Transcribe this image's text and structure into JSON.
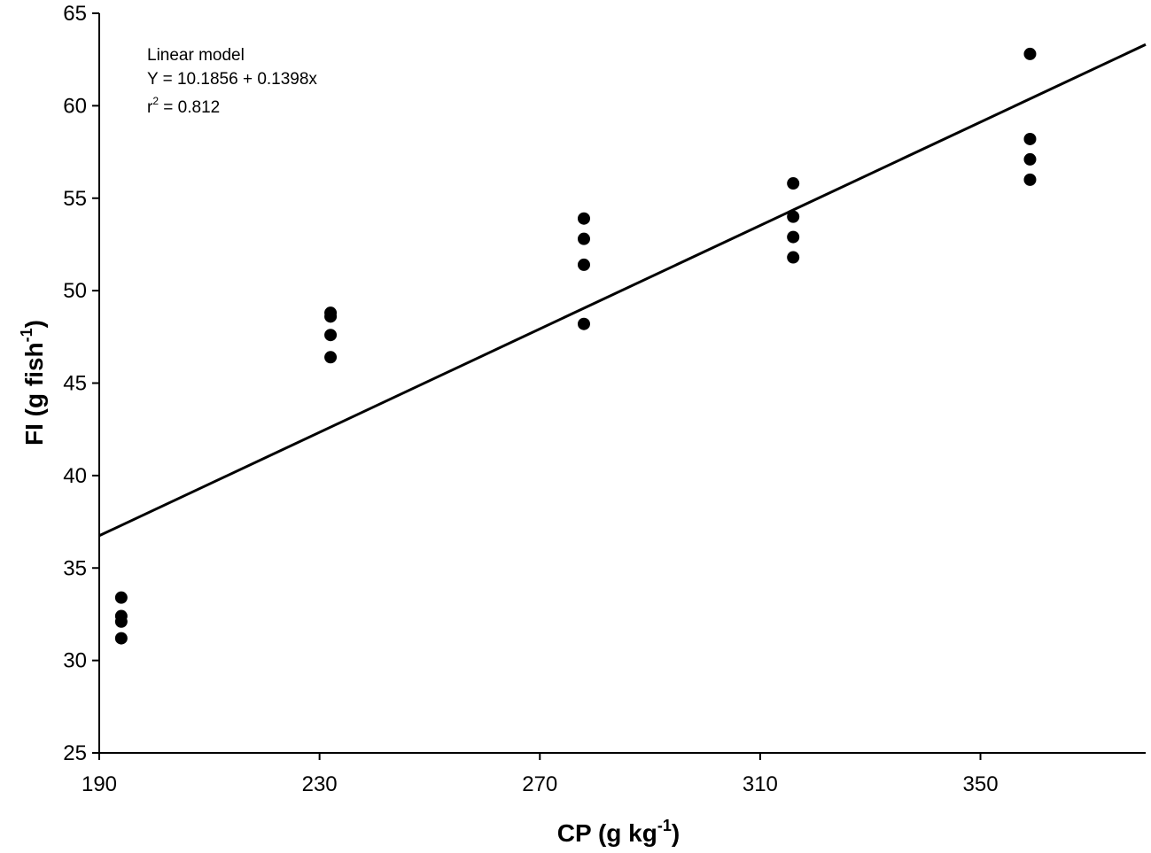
{
  "chart_data": {
    "type": "scatter",
    "xlabel": {
      "base": "CP (g kg",
      "sup": "-1",
      "tail": ")"
    },
    "ylabel": {
      "base": "FI (g fish",
      "sup": "-1",
      "tail": ")"
    },
    "xlim": [
      190,
      380
    ],
    "ylim": [
      25,
      65
    ],
    "xticks": [
      190,
      230,
      270,
      310,
      350
    ],
    "yticks": [
      25,
      30,
      35,
      40,
      45,
      50,
      55,
      60,
      65
    ],
    "grid": false,
    "annotation": {
      "line1": "Linear model",
      "line2": "Y = 10.1856 + 0.1398x",
      "line3_base": "r",
      "line3_sup": "2",
      "line3_tail": " = 0.812"
    },
    "fit": {
      "intercept": 10.1856,
      "slope": 0.1398,
      "x_range": [
        190,
        380
      ]
    },
    "points": [
      {
        "x": 194,
        "y": 33.4
      },
      {
        "x": 194,
        "y": 32.4
      },
      {
        "x": 194,
        "y": 32.1
      },
      {
        "x": 194,
        "y": 31.2
      },
      {
        "x": 232,
        "y": 48.8
      },
      {
        "x": 232,
        "y": 48.6
      },
      {
        "x": 232,
        "y": 47.6
      },
      {
        "x": 232,
        "y": 46.4
      },
      {
        "x": 278,
        "y": 53.9
      },
      {
        "x": 278,
        "y": 52.8
      },
      {
        "x": 278,
        "y": 51.4
      },
      {
        "x": 278,
        "y": 48.2
      },
      {
        "x": 316,
        "y": 55.8
      },
      {
        "x": 316,
        "y": 54.0
      },
      {
        "x": 316,
        "y": 52.9
      },
      {
        "x": 316,
        "y": 51.8
      },
      {
        "x": 359,
        "y": 62.8
      },
      {
        "x": 359,
        "y": 58.2
      },
      {
        "x": 359,
        "y": 57.1
      },
      {
        "x": 359,
        "y": 56.0
      }
    ]
  }
}
